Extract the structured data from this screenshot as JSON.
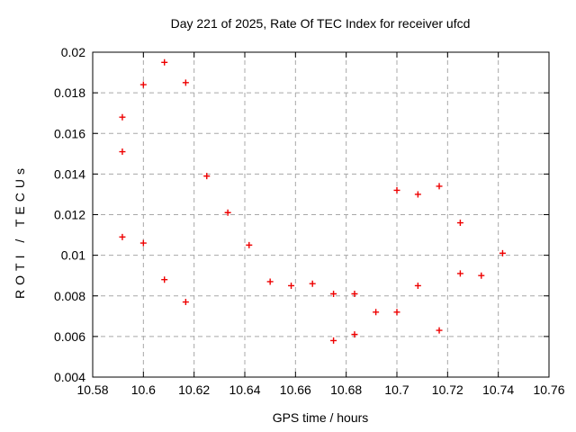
{
  "chart_data": {
    "type": "scatter",
    "title": "Day 221 of 2025, Rate Of TEC Index for receiver ufcd",
    "xlabel": "GPS time / hours",
    "ylabel": "ROTI / TECUs",
    "xlim": [
      10.58,
      10.76
    ],
    "ylim": [
      0.004,
      0.02
    ],
    "xticks": {
      "values": [
        10.58,
        10.6,
        10.62,
        10.64,
        10.66,
        10.68,
        10.7,
        10.72,
        10.74,
        10.76
      ],
      "labels": [
        "10.58",
        "10.6",
        "10.62",
        "10.64",
        "10.66",
        "10.68",
        "10.7",
        "10.72",
        "10.74",
        "10.76"
      ]
    },
    "yticks": {
      "values": [
        0.004,
        0.006,
        0.008,
        0.01,
        0.012,
        0.014,
        0.016,
        0.018,
        0.02
      ],
      "labels": [
        "0.004",
        "0.006",
        "0.008",
        "0.01",
        "0.012",
        "0.014",
        "0.016",
        "0.018",
        "0.02"
      ]
    },
    "grid": true,
    "legend": false,
    "marker": {
      "shape": "plus",
      "color": "#ee0000",
      "size": 7
    },
    "grid_color": "#a8a8a8",
    "axis_color": "#000000",
    "background_color": "#ffffff",
    "points": [
      [
        10.5917,
        0.0168
      ],
      [
        10.5917,
        0.0151
      ],
      [
        10.5917,
        0.0109
      ],
      [
        10.6,
        0.0184
      ],
      [
        10.6,
        0.0106
      ],
      [
        10.6083,
        0.0195
      ],
      [
        10.6083,
        0.0088
      ],
      [
        10.6167,
        0.0185
      ],
      [
        10.6167,
        0.0077
      ],
      [
        10.625,
        0.0139
      ],
      [
        10.6333,
        0.0121
      ],
      [
        10.6417,
        0.0105
      ],
      [
        10.65,
        0.0087
      ],
      [
        10.6583,
        0.0085
      ],
      [
        10.6667,
        0.0086
      ],
      [
        10.675,
        0.0081
      ],
      [
        10.675,
        0.0058
      ],
      [
        10.6833,
        0.0081
      ],
      [
        10.6833,
        0.0061
      ],
      [
        10.6917,
        0.0072
      ],
      [
        10.7,
        0.0132
      ],
      [
        10.7,
        0.0072
      ],
      [
        10.7083,
        0.013
      ],
      [
        10.7083,
        0.0085
      ],
      [
        10.7167,
        0.0134
      ],
      [
        10.7167,
        0.0063
      ],
      [
        10.725,
        0.0116
      ],
      [
        10.725,
        0.0091
      ],
      [
        10.7333,
        0.009
      ],
      [
        10.7417,
        0.0101
      ]
    ]
  }
}
